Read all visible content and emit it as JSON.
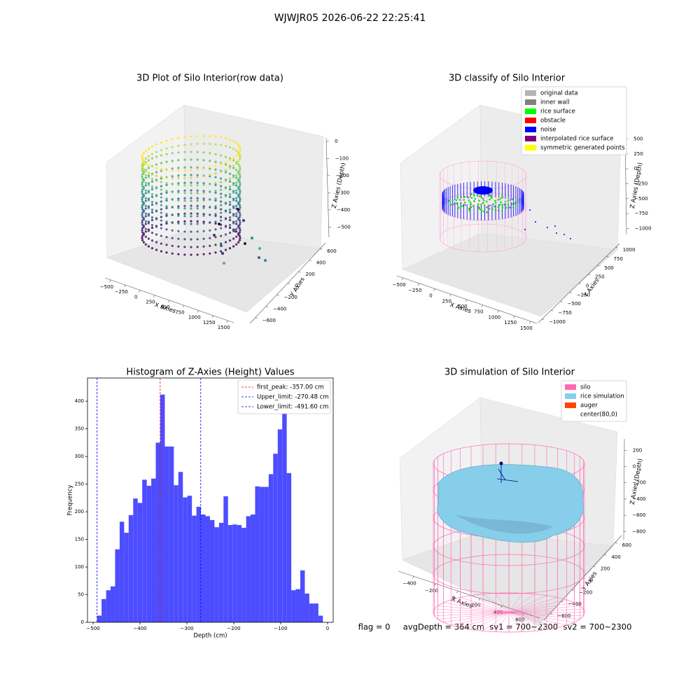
{
  "title": "WJWJR05 2026-06-22 22:25:41",
  "footer": "flag = 0     avgDepth = 364 cm  sv1 = 700~2300  sv2 = 700~2300",
  "chart_data": [
    {
      "type": "scatter3d",
      "title": "3D Plot of Silo Interior(row data)",
      "xlabel": "X Axies",
      "ylabel": "Y Axies",
      "zlabel": "Z Axies (Depth)",
      "xlim": [
        -600,
        1600
      ],
      "ylim": [
        -700,
        700
      ],
      "zlim": [
        20,
        -560
      ],
      "xticks": [
        {
          "value": -500,
          "label": "−500"
        },
        {
          "value": -250,
          "label": "−250"
        },
        0,
        250,
        500,
        750,
        1000,
        1250,
        1500
      ],
      "yticks": [
        {
          "value": -600,
          "label": "−600"
        },
        {
          "value": -400,
          "label": "−400"
        },
        {
          "value": -200,
          "label": "−200"
        },
        0,
        200,
        400,
        600
      ],
      "zticks": [
        0,
        {
          "value": -100,
          "label": "−100"
        },
        {
          "value": -200,
          "label": "−200"
        },
        {
          "value": -300,
          "label": "−300"
        },
        {
          "value": -400,
          "label": "−400"
        },
        {
          "value": -500,
          "label": "−500"
        }
      ]
    },
    {
      "type": "scatter3d",
      "title": "3D classify of Silo Interior",
      "xlabel": "X Axies",
      "ylabel": "Y Axies",
      "zlabel": "Z Axies (Depth)",
      "xlim": [
        -600,
        1600
      ],
      "ylim": [
        -1100,
        1100
      ],
      "zlim": [
        600,
        -1100
      ],
      "xticks": [
        {
          "value": -500,
          "label": "−500"
        },
        {
          "value": -250,
          "label": "−250"
        },
        0,
        250,
        500,
        750,
        1000,
        1250,
        1500
      ],
      "yticks": [
        {
          "value": -1000,
          "label": "−1000"
        },
        {
          "value": -750,
          "label": "−750"
        },
        {
          "value": -500,
          "label": "−500"
        },
        {
          "value": -250,
          "label": "−250"
        },
        0,
        250,
        500,
        750,
        1000
      ],
      "zticks": [
        500,
        250,
        0,
        {
          "value": -250,
          "label": "−250"
        },
        {
          "value": -500,
          "label": "−500"
        },
        {
          "value": -750,
          "label": "−750"
        },
        {
          "value": -1000,
          "label": "−1000"
        }
      ],
      "legend": [
        {
          "name": "original data",
          "color": "#b3b3b3"
        },
        {
          "name": "inner wall",
          "color": "#808080"
        },
        {
          "name": "rice surface",
          "color": "#00ff00"
        },
        {
          "name": "obstacle",
          "color": "#ff0000"
        },
        {
          "name": "noise",
          "color": "#0000ff"
        },
        {
          "name": "interpolated rice surface",
          "color": "#800080"
        },
        {
          "name": "symmetric generated points",
          "color": "#ffff00"
        }
      ]
    },
    {
      "type": "histogram",
      "title": "Histogram of Z-Axies (Height) Values",
      "xlabel": "Depth (cm)",
      "ylabel": "Frequency",
      "color": "#4d4dff",
      "bins": [
        -491.6,
        -482.0,
        -472.3,
        -462.7,
        -453.1,
        -443.4,
        -433.8,
        -424.2,
        -414.5,
        -404.9,
        -395.3,
        -385.6,
        -376.0,
        -366.4,
        -356.8,
        -347.1,
        -337.5,
        -327.9,
        -318.2,
        -308.6,
        -299.0,
        -289.3,
        -279.7,
        -270.1,
        -260.4,
        -250.8,
        -241.2,
        -231.5,
        -221.9,
        -212.3,
        -202.6,
        -193.0,
        -183.4,
        -173.7,
        -164.1,
        -154.5,
        -144.9,
        -135.2,
        -125.6,
        -116.0,
        -106.3,
        -96.7,
        -87.1,
        -77.4,
        -67.8,
        -58.2,
        -48.5,
        -38.9,
        -29.3,
        -19.6,
        -10.0
      ],
      "values": [
        12,
        42,
        58,
        65,
        132,
        182,
        162,
        194,
        224,
        216,
        258,
        247,
        260,
        325,
        412,
        318,
        318,
        248,
        272,
        226,
        229,
        193,
        209,
        195,
        192,
        185,
        172,
        180,
        228,
        176,
        177,
        176,
        171,
        192,
        195,
        246,
        245,
        245,
        268,
        305,
        349,
        432,
        270,
        58,
        60,
        94,
        52,
        34,
        34,
        12
      ],
      "xlim": [
        -512,
        12
      ],
      "ylim": [
        0,
        442
      ],
      "xticks": [
        {
          "value": -500,
          "label": "−500"
        },
        {
          "value": -400,
          "label": "−400"
        },
        {
          "value": -300,
          "label": "−300"
        },
        {
          "value": -200,
          "label": "−200"
        },
        {
          "value": -100,
          "label": "−100"
        },
        0
      ],
      "yticks": [
        0,
        50,
        100,
        150,
        200,
        250,
        300,
        350,
        400
      ],
      "lines": [
        {
          "name": "first_peak: -357.00 cm",
          "value": -357.0,
          "color": "#ff0000"
        },
        {
          "name": "Upper_limit: -270.48 cm",
          "value": -270.48,
          "color": "#0000ff"
        },
        {
          "name": "Lower_limit: -491.60 cm",
          "value": -491.6,
          "color": "#0000ff"
        }
      ],
      "legend_position": "upper right"
    },
    {
      "type": "surface3d",
      "title": "3D simulation of Silo Interior",
      "xlabel": "X Axies",
      "ylabel": "Y Axies",
      "zlabel": "Z Axies (Depth)",
      "xlim": [
        -540,
        740
      ],
      "ylim": [
        -720,
        720
      ],
      "zlim": [
        340,
        -900
      ],
      "xticks": [
        {
          "value": -400,
          "label": "−400"
        },
        {
          "value": -200,
          "label": "−200"
        },
        0,
        200,
        400,
        600
      ],
      "yticks": [
        {
          "value": -600,
          "label": "−600"
        },
        {
          "value": -400,
          "label": "−400"
        },
        {
          "value": -200,
          "label": "−200"
        },
        0,
        200,
        400,
        600
      ],
      "zticks": [
        200,
        0,
        {
          "value": -200,
          "label": "−200"
        },
        {
          "value": -400,
          "label": "−400"
        },
        {
          "value": -600,
          "label": "−600"
        },
        {
          "value": -800,
          "label": "−800"
        }
      ],
      "legend": [
        {
          "name": "silo",
          "color": "#ff69b4"
        },
        {
          "name": "rice simulation",
          "color": "#87ceeb"
        },
        {
          "name": "auger",
          "color": "#ff4500"
        },
        {
          "name": "center(80,0)",
          "color": "#ffffff"
        }
      ]
    }
  ]
}
